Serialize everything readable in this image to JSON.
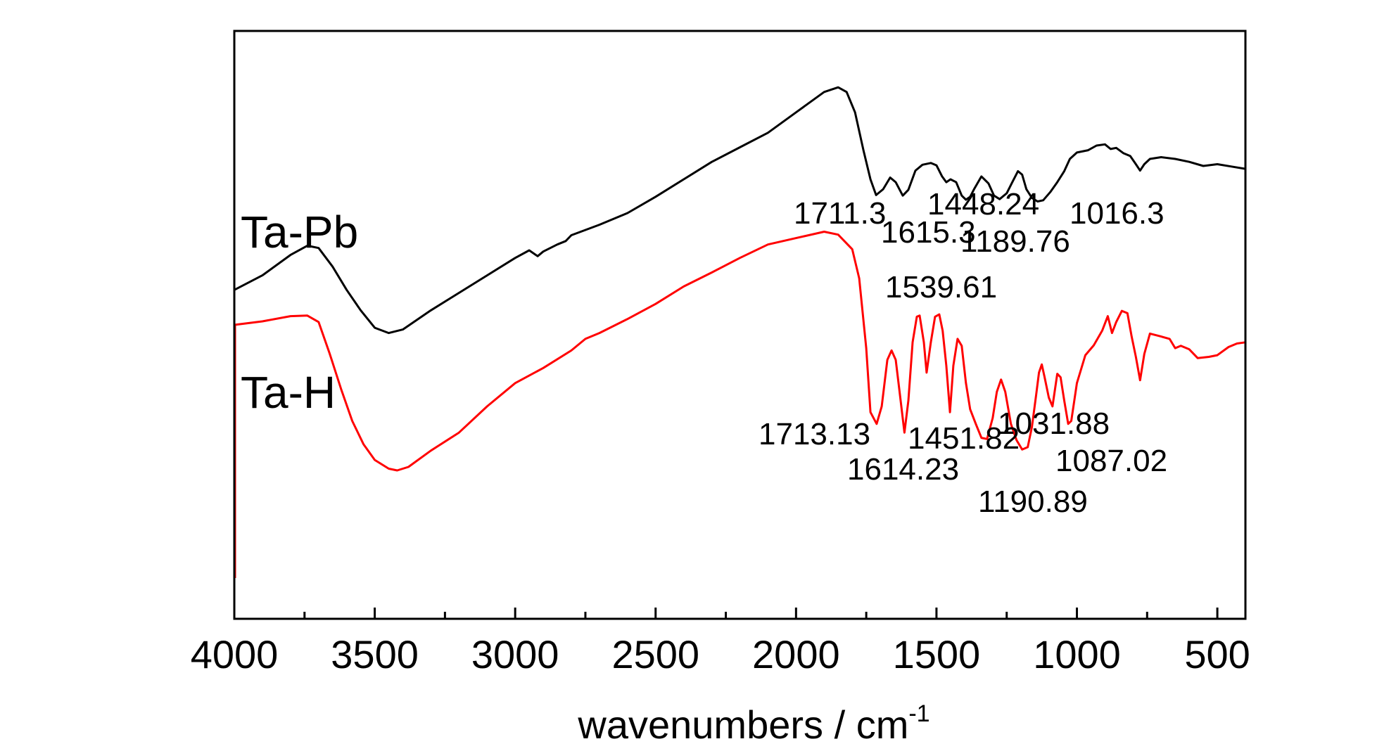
{
  "chart_data": {
    "type": "line",
    "xlabel": "wavenumbers / cm",
    "xlabel_superscript": "-1",
    "xlim": [
      4000,
      400
    ],
    "x_ticks": [
      4000,
      3500,
      3000,
      2500,
      2000,
      1500,
      1000,
      500
    ],
    "x_tick_labels": [
      "4000",
      "3500",
      "3000",
      "2500",
      "2000",
      "1500",
      "1000",
      "500"
    ],
    "ylim": [
      0,
      100
    ],
    "y_axis_labels": false,
    "grid": false,
    "legend": "none",
    "series": [
      {
        "name": "Ta-Pb",
        "color": "#000000",
        "points": [
          [
            4000,
            56
          ],
          [
            3900,
            58.5
          ],
          [
            3800,
            62
          ],
          [
            3740,
            63.6
          ],
          [
            3700,
            63.2
          ],
          [
            3650,
            60
          ],
          [
            3600,
            56
          ],
          [
            3550,
            52.5
          ],
          [
            3500,
            49.5
          ],
          [
            3450,
            48.6
          ],
          [
            3400,
            49.2
          ],
          [
            3300,
            52.5
          ],
          [
            3200,
            55.5
          ],
          [
            3100,
            58.5
          ],
          [
            3000,
            61.5
          ],
          [
            2950,
            62.8
          ],
          [
            2920,
            61.8
          ],
          [
            2900,
            62.6
          ],
          [
            2850,
            63.8
          ],
          [
            2820,
            64.4
          ],
          [
            2800,
            65.4
          ],
          [
            2700,
            67.2
          ],
          [
            2600,
            69.2
          ],
          [
            2500,
            72
          ],
          [
            2400,
            75
          ],
          [
            2300,
            78
          ],
          [
            2200,
            80.5
          ],
          [
            2100,
            83
          ],
          [
            2000,
            86.5
          ],
          [
            1900,
            90
          ],
          [
            1850,
            90.8
          ],
          [
            1820,
            90
          ],
          [
            1790,
            86.5
          ],
          [
            1760,
            80
          ],
          [
            1735,
            75
          ],
          [
            1715,
            72.3
          ],
          [
            1690,
            73.3
          ],
          [
            1665,
            75.3
          ],
          [
            1645,
            74.5
          ],
          [
            1620,
            72.2
          ],
          [
            1600,
            73.2
          ],
          [
            1575,
            76.5
          ],
          [
            1550,
            77.5
          ],
          [
            1520,
            77.8
          ],
          [
            1500,
            77.4
          ],
          [
            1480,
            75.5
          ],
          [
            1465,
            74.5
          ],
          [
            1450,
            75
          ],
          [
            1430,
            74.5
          ],
          [
            1410,
            72.2
          ],
          [
            1395,
            71.5
          ],
          [
            1380,
            72
          ],
          [
            1365,
            73.4
          ],
          [
            1340,
            75.5
          ],
          [
            1315,
            74.3
          ],
          [
            1295,
            72.2
          ],
          [
            1275,
            71.6
          ],
          [
            1250,
            72.6
          ],
          [
            1230,
            74.5
          ],
          [
            1210,
            76.4
          ],
          [
            1195,
            75.8
          ],
          [
            1180,
            73.3
          ],
          [
            1160,
            71.8
          ],
          [
            1140,
            71.2
          ],
          [
            1120,
            71.4
          ],
          [
            1095,
            72.8
          ],
          [
            1070,
            74.5
          ],
          [
            1045,
            76.4
          ],
          [
            1025,
            78.5
          ],
          [
            1000,
            79.6
          ],
          [
            960,
            80
          ],
          [
            930,
            80.8
          ],
          [
            900,
            81
          ],
          [
            880,
            80.2
          ],
          [
            860,
            80.4
          ],
          [
            835,
            79.5
          ],
          [
            810,
            79
          ],
          [
            790,
            77.6
          ],
          [
            775,
            76.5
          ],
          [
            760,
            77.6
          ],
          [
            740,
            78.5
          ],
          [
            700,
            78.8
          ],
          [
            650,
            78.5
          ],
          [
            600,
            78
          ],
          [
            550,
            77.3
          ],
          [
            500,
            77.6
          ],
          [
            450,
            77.2
          ],
          [
            400,
            76.8
          ]
        ]
      },
      {
        "name": "Ta-H",
        "color": "#ff0000",
        "points": [
          [
            4000,
            50
          ],
          [
            3900,
            50.6
          ],
          [
            3800,
            51.5
          ],
          [
            3740,
            51.6
          ],
          [
            3700,
            50.5
          ],
          [
            3660,
            45
          ],
          [
            3620,
            39
          ],
          [
            3580,
            33.5
          ],
          [
            3540,
            29.5
          ],
          [
            3500,
            26.8
          ],
          [
            3450,
            25.3
          ],
          [
            3420,
            25
          ],
          [
            3380,
            25.6
          ],
          [
            3300,
            28.4
          ],
          [
            3200,
            31.5
          ],
          [
            3100,
            36
          ],
          [
            3000,
            40
          ],
          [
            2900,
            42.6
          ],
          [
            2800,
            45.6
          ],
          [
            2750,
            47.6
          ],
          [
            2700,
            48.6
          ],
          [
            2600,
            51
          ],
          [
            2500,
            53.6
          ],
          [
            2400,
            56.6
          ],
          [
            2300,
            59
          ],
          [
            2200,
            61.5
          ],
          [
            2100,
            63.8
          ],
          [
            2000,
            64.9
          ],
          [
            1900,
            66
          ],
          [
            1850,
            65.5
          ],
          [
            1800,
            63
          ],
          [
            1775,
            58
          ],
          [
            1750,
            46
          ],
          [
            1735,
            35
          ],
          [
            1713,
            33
          ],
          [
            1695,
            36
          ],
          [
            1675,
            44
          ],
          [
            1660,
            45.6
          ],
          [
            1645,
            44
          ],
          [
            1630,
            38
          ],
          [
            1614,
            31.5
          ],
          [
            1600,
            37
          ],
          [
            1585,
            47
          ],
          [
            1570,
            51.4
          ],
          [
            1560,
            51.6
          ],
          [
            1545,
            47
          ],
          [
            1535,
            41.8
          ],
          [
            1520,
            47
          ],
          [
            1505,
            51.4
          ],
          [
            1490,
            51.8
          ],
          [
            1478,
            49
          ],
          [
            1465,
            43
          ],
          [
            1452,
            35
          ],
          [
            1440,
            43
          ],
          [
            1425,
            47.6
          ],
          [
            1410,
            46.4
          ],
          [
            1395,
            40
          ],
          [
            1380,
            35.5
          ],
          [
            1360,
            33
          ],
          [
            1340,
            30.6
          ],
          [
            1320,
            30.4
          ],
          [
            1300,
            34
          ],
          [
            1285,
            38.5
          ],
          [
            1270,
            40.6
          ],
          [
            1255,
            38.5
          ],
          [
            1235,
            33
          ],
          [
            1215,
            30.2
          ],
          [
            1195,
            28.6
          ],
          [
            1175,
            29
          ],
          [
            1160,
            32.5
          ],
          [
            1145,
            38
          ],
          [
            1135,
            41.8
          ],
          [
            1125,
            43.2
          ],
          [
            1115,
            41
          ],
          [
            1100,
            37.5
          ],
          [
            1087,
            36
          ],
          [
            1070,
            41.6
          ],
          [
            1058,
            41
          ],
          [
            1045,
            37
          ],
          [
            1031,
            33
          ],
          [
            1020,
            33.5
          ],
          [
            1000,
            40
          ],
          [
            970,
            44.8
          ],
          [
            940,
            46.5
          ],
          [
            910,
            49
          ],
          [
            890,
            51.5
          ],
          [
            875,
            48.6
          ],
          [
            860,
            50.5
          ],
          [
            840,
            52.4
          ],
          [
            820,
            52
          ],
          [
            805,
            48
          ],
          [
            790,
            44.5
          ],
          [
            775,
            40.5
          ],
          [
            760,
            45
          ],
          [
            740,
            48.5
          ],
          [
            700,
            48
          ],
          [
            670,
            47.6
          ],
          [
            650,
            46
          ],
          [
            630,
            46.4
          ],
          [
            600,
            45.8
          ],
          [
            570,
            44.3
          ],
          [
            530,
            44.5
          ],
          [
            500,
            44.8
          ],
          [
            460,
            46.2
          ],
          [
            430,
            46.8
          ],
          [
            400,
            47
          ]
        ]
      }
    ],
    "series_labels": [
      {
        "text": "Ta-Pb",
        "series": "Ta-Pb"
      },
      {
        "text": "Ta-H",
        "series": "Ta-H"
      }
    ],
    "annotations": [
      {
        "text": "1711.3",
        "series": "Ta-Pb"
      },
      {
        "text": "1615.3",
        "series": "Ta-Pb"
      },
      {
        "text": "1448.24",
        "series": "Ta-Pb"
      },
      {
        "text": "1189.76",
        "series": "Ta-Pb"
      },
      {
        "text": "1016.3",
        "series": "Ta-Pb"
      },
      {
        "text": "1539.61",
        "series": "Ta-H"
      },
      {
        "text": "1713.13",
        "series": "Ta-H"
      },
      {
        "text": "1614.23",
        "series": "Ta-H"
      },
      {
        "text": "1451.82",
        "series": "Ta-H"
      },
      {
        "text": "1031.88",
        "series": "Ta-H"
      },
      {
        "text": "1087.02",
        "series": "Ta-H"
      },
      {
        "text": "1190.89",
        "series": "Ta-H"
      }
    ]
  }
}
